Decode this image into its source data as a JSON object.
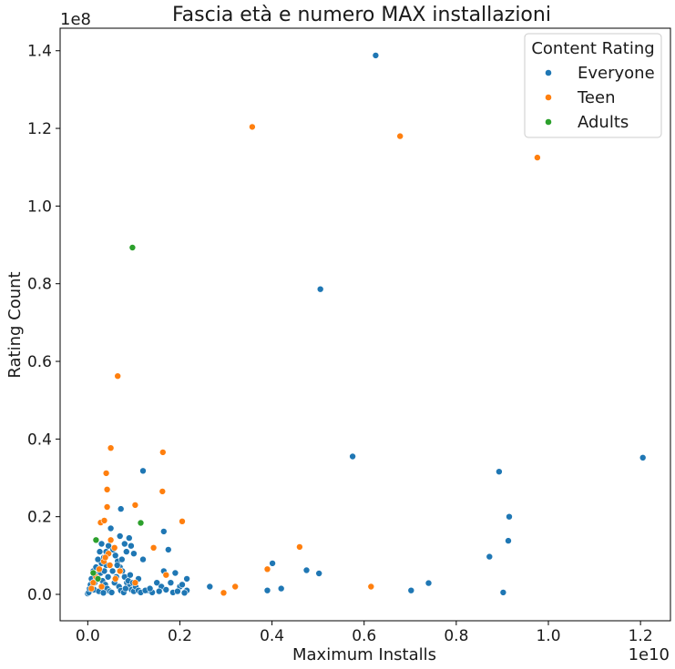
{
  "chart_data": {
    "type": "scatter",
    "title": "Fascia età e numero MAX installazioni",
    "xlabel": "Maximum Installs",
    "ylabel": "Rating Count",
    "x_offset_label": "1e10",
    "y_offset_label": "1e8",
    "xlim": [
      -0.06,
      1.265
    ],
    "ylim": [
      -0.068,
      1.458
    ],
    "xticks": [
      0.0,
      0.2,
      0.4,
      0.6,
      0.8,
      1.0,
      1.2
    ],
    "xtick_labels": [
      "0.0",
      "0.2",
      "0.4",
      "0.6",
      "0.8",
      "1.0",
      "1.2"
    ],
    "yticks": [
      0.0,
      0.2,
      0.4,
      0.6,
      0.8,
      1.0,
      1.2,
      1.4
    ],
    "ytick_labels": [
      "0.0",
      "0.2",
      "0.4",
      "0.6",
      "0.8",
      "1.0",
      "1.2",
      "1.4"
    ],
    "grid": false,
    "legend": {
      "title": "Content Rating",
      "placement": "top-right"
    },
    "series": [
      {
        "name": "Everyone",
        "color": "#1f77b4",
        "points": [
          [
            0.625,
            1.388
          ],
          [
            0.505,
            0.786
          ],
          [
            0.575,
            0.355
          ],
          [
            1.205,
            0.352
          ],
          [
            0.893,
            0.316
          ],
          [
            0.915,
            0.2
          ],
          [
            0.913,
            0.138
          ],
          [
            0.872,
            0.097
          ],
          [
            0.74,
            0.029
          ],
          [
            0.702,
            0.01
          ],
          [
            0.902,
            0.005
          ],
          [
            0.475,
            0.062
          ],
          [
            0.502,
            0.054
          ],
          [
            0.401,
            0.08
          ],
          [
            0.42,
            0.015
          ],
          [
            0.39,
            0.01
          ],
          [
            0.265,
            0.02
          ],
          [
            0.12,
            0.318
          ],
          [
            0.072,
            0.22
          ],
          [
            0.165,
            0.162
          ],
          [
            0.175,
            0.115
          ],
          [
            0.165,
            0.06
          ],
          [
            0.215,
            0.04
          ],
          [
            0.19,
            0.055
          ],
          [
            0.13,
            0.01
          ],
          [
            0.11,
            0.04
          ],
          [
            0.05,
            0.17
          ],
          [
            0.07,
            0.15
          ],
          [
            0.09,
            0.145
          ],
          [
            0.08,
            0.13
          ],
          [
            0.1,
            0.105
          ],
          [
            0.12,
            0.09
          ],
          [
            0.2,
            0.02
          ],
          [
            0.215,
            0.01
          ],
          [
            0.185,
            0.005
          ],
          [
            0.15,
            0.03
          ],
          [
            0.16,
            0.02
          ],
          [
            0.14,
            0.005
          ],
          [
            0.0,
            0.002
          ],
          [
            0.005,
            0.01
          ],
          [
            0.01,
            0.02
          ],
          [
            0.015,
            0.03
          ],
          [
            0.02,
            0.05
          ],
          [
            0.025,
            0.065
          ],
          [
            0.03,
            0.08
          ],
          [
            0.035,
            0.095
          ],
          [
            0.04,
            0.11
          ],
          [
            0.045,
            0.125
          ],
          [
            0.05,
            0.14
          ],
          [
            0.055,
            0.115
          ],
          [
            0.06,
            0.1
          ],
          [
            0.065,
            0.085
          ],
          [
            0.07,
            0.07
          ],
          [
            0.075,
            0.06
          ],
          [
            0.08,
            0.045
          ],
          [
            0.085,
            0.03
          ],
          [
            0.09,
            0.02
          ],
          [
            0.095,
            0.012
          ],
          [
            0.1,
            0.008
          ],
          [
            0.008,
            0.04
          ],
          [
            0.012,
            0.06
          ],
          [
            0.018,
            0.07
          ],
          [
            0.022,
            0.09
          ],
          [
            0.028,
            0.055
          ],
          [
            0.032,
            0.035
          ],
          [
            0.038,
            0.025
          ],
          [
            0.042,
            0.015
          ],
          [
            0.048,
            0.008
          ],
          [
            0.052,
            0.005
          ],
          [
            0.058,
            0.03
          ],
          [
            0.062,
            0.045
          ],
          [
            0.068,
            0.02
          ],
          [
            0.072,
            0.01
          ],
          [
            0.078,
            0.005
          ],
          [
            0.082,
            0.015
          ],
          [
            0.088,
            0.035
          ],
          [
            0.092,
            0.05
          ],
          [
            0.098,
            0.03
          ],
          [
            0.104,
            0.02
          ],
          [
            0.11,
            0.01
          ],
          [
            0.115,
            0.005
          ],
          [
            0.002,
            0.005
          ],
          [
            0.004,
            0.015
          ],
          [
            0.006,
            0.025
          ],
          [
            0.014,
            0.012
          ],
          [
            0.024,
            0.008
          ],
          [
            0.034,
            0.004
          ],
          [
            0.044,
            0.045
          ],
          [
            0.054,
            0.06
          ],
          [
            0.064,
            0.075
          ],
          [
            0.074,
            0.09
          ],
          [
            0.084,
            0.11
          ],
          [
            0.094,
            0.125
          ],
          [
            0.03,
            0.13
          ],
          [
            0.04,
            0.075
          ],
          [
            0.125,
            0.01
          ],
          [
            0.135,
            0.015
          ],
          [
            0.155,
            0.008
          ],
          [
            0.17,
            0.012
          ],
          [
            0.18,
            0.03
          ],
          [
            0.195,
            0.008
          ],
          [
            0.205,
            0.025
          ],
          [
            0.21,
            0.004
          ],
          [
            0.026,
            0.11
          ],
          [
            0.036,
            0.06
          ]
        ]
      },
      {
        "name": "Teen",
        "color": "#ff7f0e",
        "points": [
          [
            0.357,
            1.204
          ],
          [
            0.678,
            1.18
          ],
          [
            0.976,
            1.125
          ],
          [
            0.065,
            0.562
          ],
          [
            0.05,
            0.377
          ],
          [
            0.163,
            0.366
          ],
          [
            0.04,
            0.312
          ],
          [
            0.162,
            0.265
          ],
          [
            0.042,
            0.27
          ],
          [
            0.103,
            0.23
          ],
          [
            0.042,
            0.225
          ],
          [
            0.028,
            0.185
          ],
          [
            0.205,
            0.188
          ],
          [
            0.036,
            0.19
          ],
          [
            0.143,
            0.12
          ],
          [
            0.46,
            0.122
          ],
          [
            0.39,
            0.065
          ],
          [
            0.32,
            0.02
          ],
          [
            0.295,
            0.004
          ],
          [
            0.615,
            0.02
          ],
          [
            0.17,
            0.05
          ],
          [
            0.103,
            0.03
          ],
          [
            0.05,
            0.14
          ],
          [
            0.058,
            0.12
          ],
          [
            0.045,
            0.105
          ],
          [
            0.035,
            0.085
          ],
          [
            0.025,
            0.065
          ],
          [
            0.018,
            0.045
          ],
          [
            0.012,
            0.03
          ],
          [
            0.008,
            0.015
          ],
          [
            0.03,
            0.02
          ],
          [
            0.06,
            0.04
          ],
          [
            0.07,
            0.06
          ],
          [
            0.048,
            0.075
          ],
          [
            0.038,
            0.095
          ]
        ]
      },
      {
        "name": "Adults",
        "color": "#2ca02c",
        "points": [
          [
            0.097,
            0.893
          ],
          [
            0.115,
            0.184
          ],
          [
            0.018,
            0.14
          ],
          [
            0.022,
            0.04
          ],
          [
            0.012,
            0.055
          ]
        ]
      }
    ]
  }
}
